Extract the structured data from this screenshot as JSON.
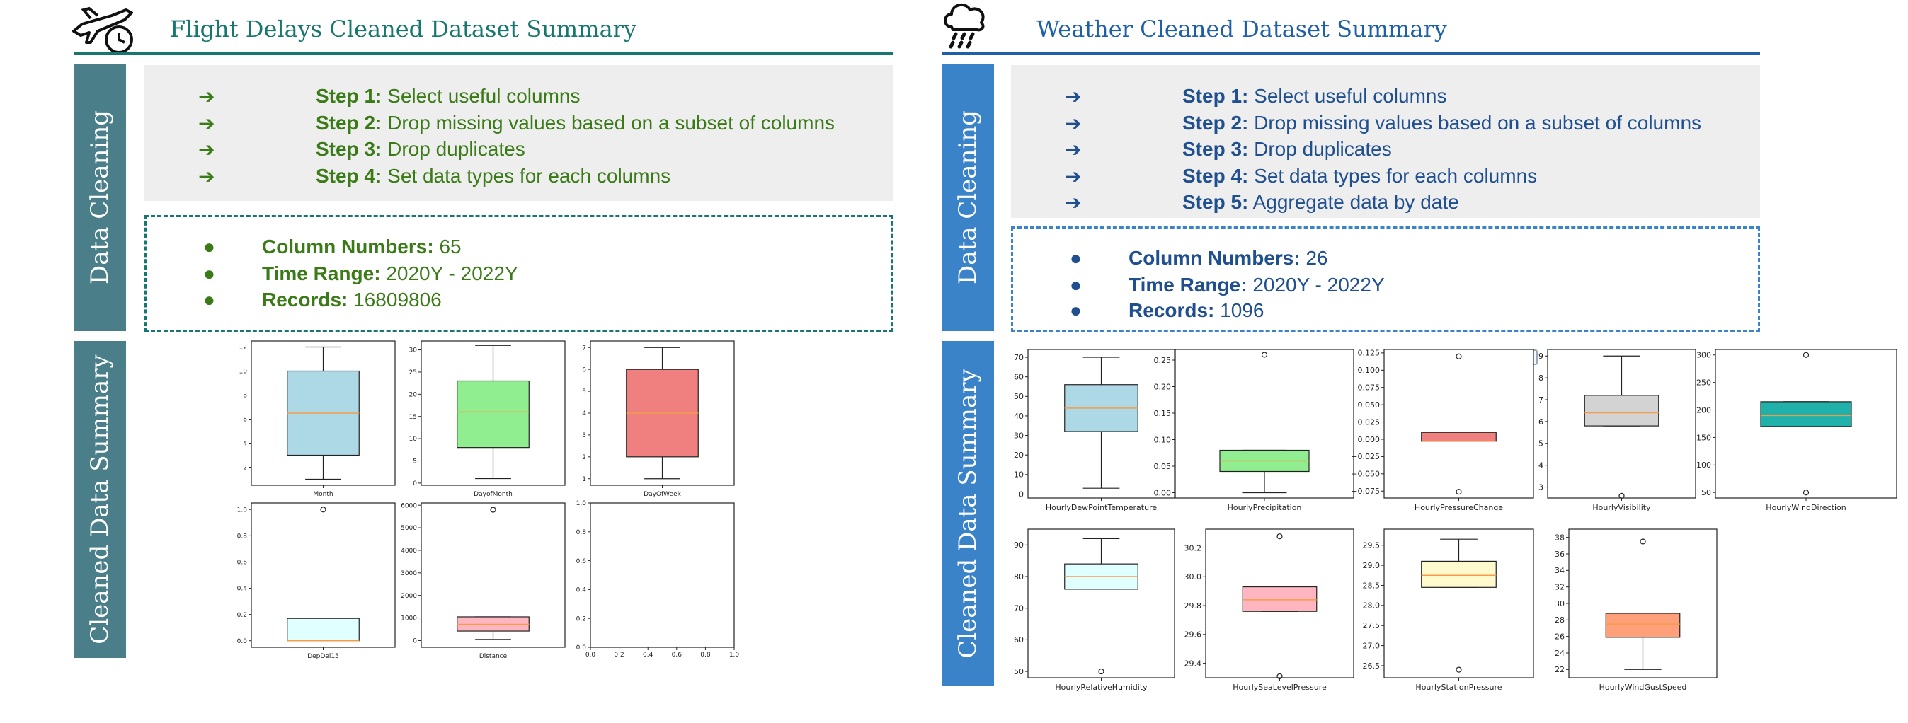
{
  "left": {
    "title": "Flight Delays Cleaned Dataset Summary",
    "icon": "airplane-clock-icon",
    "accent": "#17776f",
    "sidebar_color": "#4a7f8a",
    "text_color": "#3a7b17",
    "sidebar_cleaning": "Data Cleaning",
    "sidebar_summary": "Cleaned Data Summary",
    "steps": [
      {
        "label": "Step 1:",
        "text": "Select useful columns"
      },
      {
        "label": "Step 2:",
        "text": "Drop missing values based on a subset of columns"
      },
      {
        "label": "Step 3:",
        "text": "Drop duplicates"
      },
      {
        "label": "Step 4:",
        "text": "Set data types for each columns"
      }
    ],
    "stats": [
      {
        "label": "Column Numbers:",
        "value": "65"
      },
      {
        "label": "Time Range:",
        "value": "2020Y - 2022Y"
      },
      {
        "label": "Records:",
        "value": "16809806"
      }
    ]
  },
  "right": {
    "title": "Weather Cleaned Dataset Summary",
    "icon": "cloud-rain-icon",
    "accent": "#1f5fa8",
    "sidebar_color": "#3b83c9",
    "text_color": "#1f4f8f",
    "sidebar_cleaning": "Data Cleaning",
    "sidebar_summary": "Cleaned Data Summary",
    "steps": [
      {
        "label": "Step 1:",
        "text": "Select useful columns"
      },
      {
        "label": "Step 2:",
        "text": "Drop missing values based on a subset of columns"
      },
      {
        "label": "Step 3:",
        "text": "Drop duplicates"
      },
      {
        "label": "Step 4:",
        "text": "Set data types for each columns"
      },
      {
        "label": "Step 5:",
        "text": "Aggregate data by date"
      }
    ],
    "stats": [
      {
        "label": "Column Numbers:",
        "value": "26"
      },
      {
        "label": "Time Range:",
        "value": "2020Y - 2022Y"
      },
      {
        "label": "Records:",
        "value": "1096"
      }
    ]
  },
  "markers": {
    "arrow": "➔",
    "bullet": "●"
  },
  "chart_data": [
    {
      "type": "box",
      "xlabel": "Month",
      "color": "#add8e6",
      "ylim": [
        0.5,
        12.5
      ],
      "ticks": [
        2,
        4,
        6,
        8,
        10,
        12
      ],
      "tick_labels": [
        "2",
        "4",
        "6",
        "8",
        "10",
        "12"
      ],
      "q1": 3,
      "median": 6.5,
      "q3": 10,
      "wlo": 1,
      "whi": 12,
      "outliers": []
    },
    {
      "type": "box",
      "xlabel": "DayofMonth",
      "color": "#90ee90",
      "ylim": [
        -0.5,
        32
      ],
      "ticks": [
        0,
        5,
        10,
        15,
        20,
        25,
        30
      ],
      "tick_labels": [
        "0",
        "5",
        "10",
        "15",
        "20",
        "25",
        "30"
      ],
      "q1": 8,
      "median": 16,
      "q3": 23,
      "wlo": 1,
      "whi": 31,
      "outliers": []
    },
    {
      "type": "box",
      "xlabel": "DayOfWeek",
      "color": "#f08080",
      "ylim": [
        0.7,
        7.3
      ],
      "ticks": [
        1,
        2,
        3,
        4,
        5,
        6,
        7
      ],
      "tick_labels": [
        "1",
        "2",
        "3",
        "4",
        "5",
        "6",
        "7"
      ],
      "q1": 2,
      "median": 4,
      "q3": 6,
      "wlo": 1,
      "whi": 7,
      "outliers": []
    },
    {
      "type": "box",
      "xlabel": "DepDel15",
      "color": "#e0ffff",
      "ylim": [
        -0.05,
        1.05
      ],
      "ticks": [
        0,
        0.2,
        0.4,
        0.6,
        0.8,
        1.0
      ],
      "tick_labels": [
        "0.0",
        "0.2",
        "0.4",
        "0.6",
        "0.8",
        "1.0"
      ],
      "q1": 0,
      "median": 0,
      "q3": 0.17,
      "wlo": 0,
      "whi": 0.17,
      "outliers": [
        1.0
      ]
    },
    {
      "type": "box",
      "xlabel": "Distance",
      "color": "#ffb6c1",
      "ylim": [
        -300,
        6100
      ],
      "ticks": [
        0,
        1000,
        2000,
        3000,
        4000,
        5000,
        6000
      ],
      "tick_labels": [
        "0",
        "1000",
        "2000",
        "3000",
        "4000",
        "5000",
        "6000"
      ],
      "q1": 420,
      "median": 720,
      "q3": 1050,
      "wlo": 50,
      "whi": 1050,
      "outliers": [
        5800
      ]
    },
    {
      "type": "empty",
      "xlabel": "",
      "ylim": [
        0,
        1
      ],
      "ticks": [
        0,
        0.2,
        0.4,
        0.6,
        0.8,
        1.0
      ],
      "tick_labels": [
        "0.0",
        "0.2",
        "0.4",
        "0.6",
        "0.8",
        "1.0"
      ],
      "xticks": [
        0,
        0.2,
        0.4,
        0.6,
        0.8,
        1.0
      ],
      "xtick_labels": [
        "0.0",
        "0.2",
        "0.4",
        "0.6",
        "0.8",
        "1.0"
      ]
    },
    {
      "type": "box",
      "xlabel": "HourlyDewPointTemperature",
      "color": "#add8e6",
      "ylim": [
        -2,
        74
      ],
      "ticks": [
        0,
        10,
        20,
        30,
        40,
        50,
        60,
        70
      ],
      "tick_labels": [
        "0",
        "10",
        "20",
        "30",
        "40",
        "50",
        "60",
        "70"
      ],
      "q1": 32,
      "median": 44,
      "q3": 56,
      "wlo": 3,
      "whi": 70,
      "outliers": []
    },
    {
      "type": "box",
      "xlabel": "HourlyPrecipitation",
      "color": "#90ee90",
      "ylim": [
        -0.01,
        0.27
      ],
      "ticks": [
        0,
        0.05,
        0.1,
        0.15,
        0.2,
        0.25
      ],
      "tick_labels": [
        "0.00",
        "0.05",
        "0.10",
        "0.15",
        "0.20",
        "0.25"
      ],
      "q1": 0.04,
      "median": 0.06,
      "q3": 0.08,
      "wlo": 0,
      "whi": 0.08,
      "outliers": [
        0.26
      ]
    },
    {
      "type": "box",
      "xlabel": "HourlyPressureChange",
      "color": "#f08080",
      "ylim": [
        -0.085,
        0.13
      ],
      "ticks": [
        -0.075,
        -0.05,
        -0.025,
        0,
        0.025,
        0.05,
        0.075,
        0.1,
        0.125
      ],
      "tick_labels": [
        "−0.075",
        "−0.050",
        "−0.025",
        "0.000",
        "0.025",
        "0.050",
        "0.075",
        "0.100",
        "0.125"
      ],
      "q1": -0.003,
      "median": -0.003,
      "q3": 0.01,
      "wlo": -0.003,
      "whi": 0.01,
      "outliers": [
        0.12,
        -0.076
      ]
    },
    {
      "type": "box",
      "xlabel": "HourlyVisibility",
      "color": "#d3d3d3",
      "ylim": [
        2.5,
        9.3
      ],
      "ticks": [
        3,
        4,
        5,
        6,
        7,
        8,
        9
      ],
      "tick_labels": [
        "3",
        "4",
        "5",
        "6",
        "7",
        "8",
        "9"
      ],
      "q1": 5.8,
      "median": 6.4,
      "q3": 7.2,
      "wlo": 5.8,
      "whi": 9,
      "outliers": [
        2.6
      ]
    },
    {
      "type": "box",
      "xlabel": "HourlyWindDirection",
      "color": "#20b2aa",
      "ylim": [
        40,
        310
      ],
      "ticks": [
        50,
        100,
        150,
        200,
        250,
        300
      ],
      "tick_labels": [
        "50",
        "100",
        "150",
        "200",
        "250",
        "300"
      ],
      "q1": 170,
      "median": 190,
      "q3": 215,
      "wlo": 170,
      "whi": 215,
      "outliers": [
        300,
        50
      ]
    },
    {
      "type": "box",
      "xlabel": "HourlyRelativeHumidity",
      "color": "#e0ffff",
      "ylim": [
        48,
        95
      ],
      "ticks": [
        50,
        60,
        70,
        80,
        90
      ],
      "tick_labels": [
        "50",
        "60",
        "70",
        "80",
        "90"
      ],
      "q1": 76,
      "median": 80,
      "q3": 84,
      "wlo": 76,
      "whi": 92,
      "outliers": [
        50
      ]
    },
    {
      "type": "box",
      "xlabel": "HourlySeaLevelPressure",
      "color": "#ffb6c1",
      "ylim": [
        29.3,
        30.33
      ],
      "ticks": [
        29.4,
        29.6,
        29.8,
        30.0,
        30.2
      ],
      "tick_labels": [
        "29.4",
        "29.6",
        "29.8",
        "30.0",
        "30.2"
      ],
      "q1": 29.76,
      "median": 29.84,
      "q3": 29.93,
      "wlo": 29.76,
      "whi": 29.93,
      "outliers": [
        30.28,
        29.31
      ]
    },
    {
      "type": "box",
      "xlabel": "HourlyStationPressure",
      "color": "#fffacd",
      "ylim": [
        26.2,
        29.9
      ],
      "ticks": [
        26.5,
        27.0,
        27.5,
        28.0,
        28.5,
        29.0,
        29.5
      ],
      "tick_labels": [
        "26.5",
        "27.0",
        "27.5",
        "28.0",
        "28.5",
        "29.0",
        "29.5"
      ],
      "q1": 28.45,
      "median": 28.75,
      "q3": 29.1,
      "wlo": 28.45,
      "whi": 29.65,
      "outliers": [
        26.4
      ]
    },
    {
      "type": "box",
      "xlabel": "HourlyWindGustSpeed",
      "color": "#ffa07a",
      "ylim": [
        21,
        39
      ],
      "ticks": [
        22,
        24,
        26,
        28,
        30,
        32,
        34,
        36,
        38
      ],
      "tick_labels": [
        "22",
        "24",
        "26",
        "28",
        "30",
        "32",
        "34",
        "36",
        "38"
      ],
      "q1": 25.9,
      "median": 27.5,
      "q3": 28.8,
      "wlo": 22,
      "whi": 28.8,
      "outliers": [
        37.5
      ]
    }
  ]
}
